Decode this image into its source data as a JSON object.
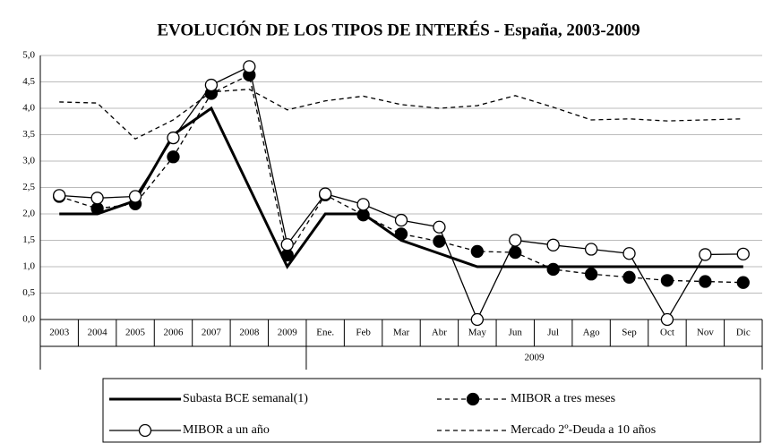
{
  "chart_data": {
    "type": "line",
    "title": "EVOLUCIÓN DE LOS TIPOS DE INTERÉS - España, 2003-2009",
    "categories": [
      "2003",
      "2004",
      "2005",
      "2006",
      "2007",
      "2008",
      "2009",
      "Ene.",
      "Feb",
      "Mar",
      "Abr",
      "May",
      "Jun",
      "Jul",
      "Ago",
      "Sep",
      "Oct",
      "Nov",
      "Dic"
    ],
    "x_group_label": "2009",
    "ylim": [
      0,
      5
    ],
    "yticks": [
      {
        "value": 0,
        "label": "0,0"
      },
      {
        "value": 0.5,
        "label": "0,5"
      },
      {
        "value": 1,
        "label": "1,0"
      },
      {
        "value": 1.5,
        "label": "1,5"
      },
      {
        "value": 2,
        "label": "2,0"
      },
      {
        "value": 2.5,
        "label": "2,5"
      },
      {
        "value": 3,
        "label": "3,0"
      },
      {
        "value": 3.5,
        "label": "3,5"
      },
      {
        "value": 4,
        "label": "4,0"
      },
      {
        "value": 4.5,
        "label": "4,5"
      },
      {
        "value": 5,
        "label": "5,0"
      }
    ],
    "grid": true,
    "series": [
      {
        "name": "Subasta BCE semanal(1)",
        "color": "#000000",
        "line_width": 3,
        "dash": false,
        "marker": "none",
        "values": [
          2.0,
          2.0,
          2.25,
          3.5,
          4.0,
          2.5,
          1.0,
          2.0,
          2.0,
          1.5,
          1.25,
          1.0,
          1.0,
          1.0,
          1.0,
          1.0,
          1.0,
          1.0,
          1.0
        ]
      },
      {
        "name": "MIBOR a tres meses",
        "color": "#000000",
        "line_width": 1.3,
        "dash": true,
        "marker": "filled",
        "values": [
          2.33,
          2.1,
          2.19,
          3.08,
          4.28,
          4.63,
          1.22,
          2.36,
          1.98,
          1.62,
          1.48,
          1.29,
          1.27,
          0.95,
          0.86,
          0.8,
          0.74,
          0.72,
          0.7
        ]
      },
      {
        "name": "MIBOR a un año",
        "color": "#000000",
        "line_width": 1.3,
        "dash": false,
        "marker": "open",
        "values": [
          2.35,
          2.3,
          2.33,
          3.44,
          4.44,
          4.79,
          1.42,
          2.38,
          2.18,
          1.88,
          1.75,
          0.0,
          1.5,
          1.41,
          1.33,
          1.25,
          0.0,
          1.23,
          1.24
        ]
      },
      {
        "name": "Mercado 2º-Deuda a 10 años",
        "color": "#000000",
        "line_width": 1.3,
        "dash": true,
        "marker": "none",
        "values": [
          4.12,
          4.1,
          3.42,
          3.78,
          4.31,
          4.36,
          3.97,
          4.14,
          4.23,
          4.07,
          4.0,
          4.05,
          4.24,
          4.02,
          3.78,
          3.8,
          3.76,
          3.78,
          3.8
        ]
      }
    ]
  }
}
